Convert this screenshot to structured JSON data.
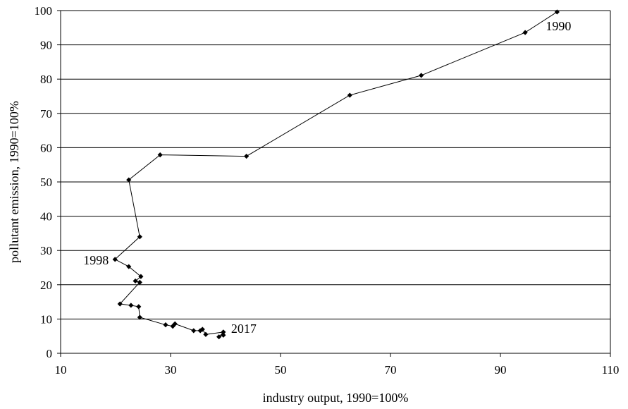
{
  "chart_data": {
    "type": "scatter",
    "xlabel": "industry output, 1990=100%",
    "ylabel": "pollutant emission, 1990=100%",
    "xlim": [
      10,
      110
    ],
    "ylim": [
      0,
      100
    ],
    "x_ticks": [
      "10",
      "30",
      "50",
      "70",
      "90",
      "110"
    ],
    "y_ticks": [
      "0",
      "10",
      "20",
      "30",
      "40",
      "50",
      "60",
      "70",
      "80",
      "90",
      "100"
    ],
    "grid": "horizontal",
    "series": [
      {
        "points": [
          {
            "x": 100.3,
            "y": 99.6
          },
          {
            "x": 94.5,
            "y": 93.6
          },
          {
            "x": 75.6,
            "y": 81.1
          },
          {
            "x": 62.6,
            "y": 75.3
          },
          {
            "x": 43.8,
            "y": 57.5
          },
          {
            "x": 28.1,
            "y": 57.9
          },
          {
            "x": 22.4,
            "y": 50.6
          },
          {
            "x": 24.4,
            "y": 34.0
          },
          {
            "x": 19.9,
            "y": 27.4
          },
          {
            "x": 22.4,
            "y": 25.3
          },
          {
            "x": 24.6,
            "y": 22.4
          },
          {
            "x": 23.6,
            "y": 21.1
          },
          {
            "x": 24.4,
            "y": 20.7
          },
          {
            "x": 20.8,
            "y": 14.4
          },
          {
            "x": 22.8,
            "y": 14.0
          },
          {
            "x": 24.2,
            "y": 13.6
          },
          {
            "x": 24.4,
            "y": 10.5
          },
          {
            "x": 29.1,
            "y": 8.3
          },
          {
            "x": 30.4,
            "y": 7.9
          },
          {
            "x": 30.8,
            "y": 8.6
          },
          {
            "x": 34.2,
            "y": 6.6
          },
          {
            "x": 35.4,
            "y": 6.6
          },
          {
            "x": 35.8,
            "y": 7.0
          },
          {
            "x": 36.4,
            "y": 5.5
          },
          {
            "x": 39.6,
            "y": 6.2
          },
          {
            "x": 38.8,
            "y": 4.8
          },
          {
            "x": 39.6,
            "y": 5.3
          }
        ]
      }
    ],
    "annotations": [
      {
        "text": "1990",
        "x": 100.3,
        "y": 99.6,
        "anchor": "below-right"
      },
      {
        "text": "1998",
        "x": 19.9,
        "y": 27.4,
        "anchor": "left"
      },
      {
        "text": "2017",
        "x": 39.6,
        "y": 6.2,
        "anchor": "right"
      }
    ]
  }
}
